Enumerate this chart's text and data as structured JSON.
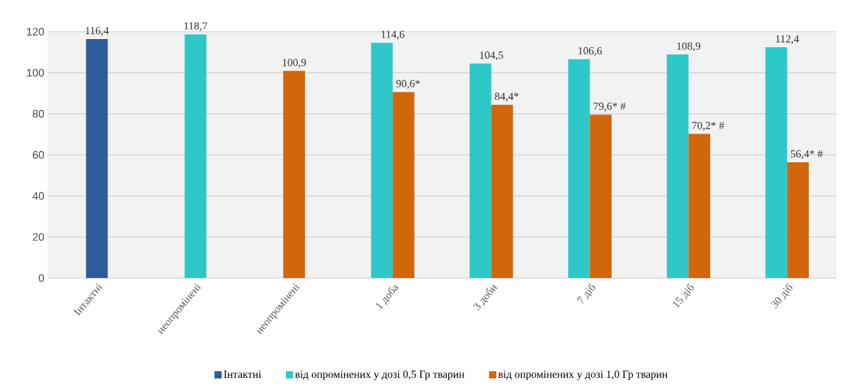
{
  "chart_data": {
    "type": "bar",
    "categories": [
      "Інтактні",
      "неопромінені",
      "неопромінені",
      "1 доба",
      "3 доби",
      "7 діб",
      "15 діб",
      "30 діб"
    ],
    "series": [
      {
        "name": "Інтактні",
        "color": "#2e5c9a",
        "values": [
          116.4,
          null,
          null,
          null,
          null,
          null,
          null,
          null
        ],
        "value_labels": [
          "116,4",
          null,
          null,
          null,
          null,
          null,
          null,
          null
        ]
      },
      {
        "name": "від опромінених у дозі 0,5 Гр тварин",
        "color": "#2ec8c8",
        "values": [
          null,
          118.7,
          null,
          114.6,
          104.5,
          106.6,
          108.9,
          112.4
        ],
        "value_labels": [
          null,
          "118,7",
          null,
          "114,6",
          "104,5",
          "106,6",
          "108,9",
          "112,4"
        ]
      },
      {
        "name": "від опромінених у дозі 1,0 Гр тварин",
        "color": "#d2660a",
        "values": [
          null,
          null,
          100.9,
          90.6,
          84.4,
          79.6,
          70.2,
          56.4
        ],
        "value_labels": [
          null,
          null,
          "100,9",
          "90,6*",
          "84,4*",
          "79,6* #",
          "70,2* #",
          "56,4* #"
        ]
      }
    ],
    "ylim": [
      0,
      120
    ],
    "yticks": [
      0,
      20,
      40,
      60,
      80,
      100,
      120
    ],
    "grid": "y",
    "legend": "bottom"
  }
}
